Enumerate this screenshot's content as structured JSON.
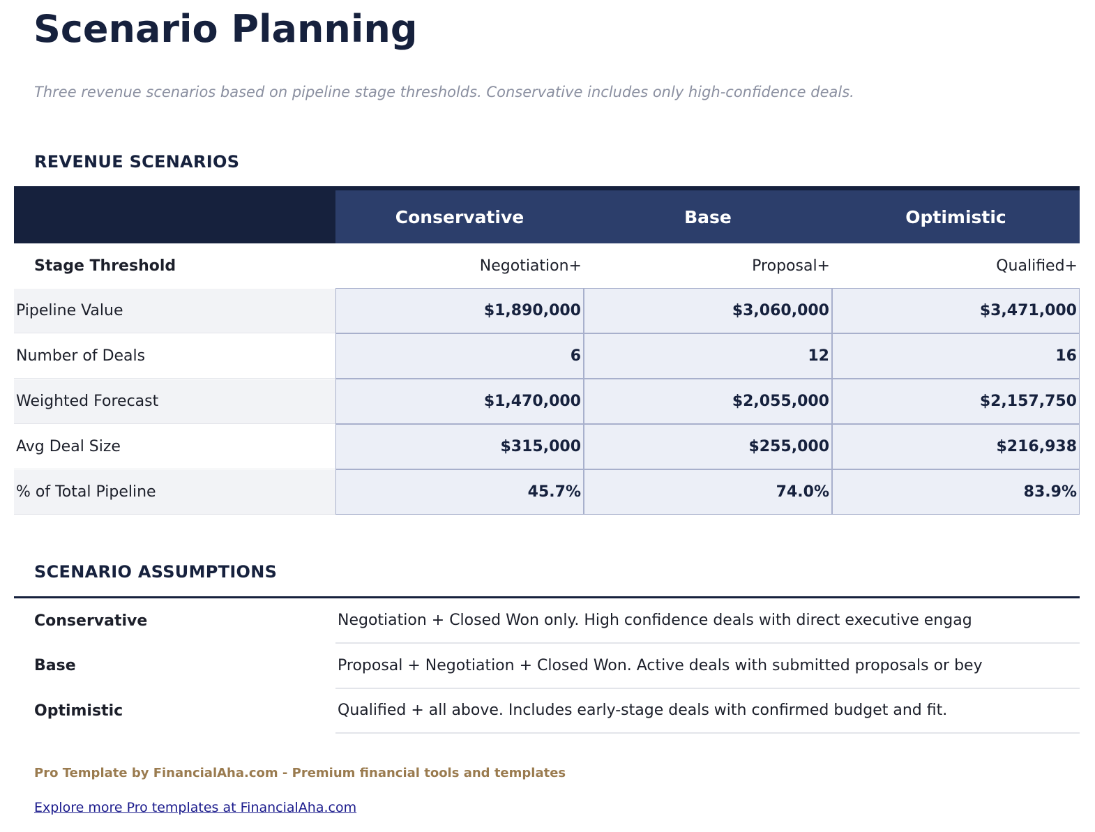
{
  "title": "Scenario Planning",
  "subtitle": "Three revenue scenarios based on pipeline stage thresholds. Conservative includes only high-confidence deals.",
  "revenue_section": {
    "heading": "REVENUE SCENARIOS",
    "columns": [
      "Conservative",
      "Base",
      "Optimistic"
    ],
    "stage_row": {
      "label": "Stage Threshold",
      "values": [
        "Negotiation+",
        "Proposal+",
        "Qualified+"
      ]
    },
    "rows": [
      {
        "label": "Pipeline Value",
        "values": [
          "$1,890,000",
          "$3,060,000",
          "$3,471,000"
        ]
      },
      {
        "label": "Number of Deals",
        "values": [
          "6",
          "12",
          "16"
        ]
      },
      {
        "label": "Weighted Forecast",
        "values": [
          "$1,470,000",
          "$2,055,000",
          "$2,157,750"
        ]
      },
      {
        "label": "Avg Deal Size",
        "values": [
          "$315,000",
          "$255,000",
          "$216,938"
        ]
      },
      {
        "label": "% of Total Pipeline",
        "values": [
          "45.7%",
          "74.0%",
          "83.9%"
        ]
      }
    ]
  },
  "assumptions_section": {
    "heading": "SCENARIO ASSUMPTIONS",
    "items": [
      {
        "name": "Conservative",
        "description": "Negotiation + Closed Won only. High confidence deals with direct executive engag"
      },
      {
        "name": "Base",
        "description": "Proposal + Negotiation + Closed Won. Active deals with submitted proposals or bey"
      },
      {
        "name": "Optimistic",
        "description": "Qualified + all above. Includes early-stage deals with confirmed budget and fit."
      }
    ]
  },
  "footer": {
    "promo": "Pro Template by FinancialAha.com - Premium financial tools and templates",
    "link": "Explore more Pro templates at FinancialAha.com"
  },
  "colors": {
    "navy": "#16213d",
    "header_blue": "#2c3e6b",
    "value_cell": "#eceff7",
    "promo": "#9a7b4f",
    "link": "#1a1a8c"
  }
}
